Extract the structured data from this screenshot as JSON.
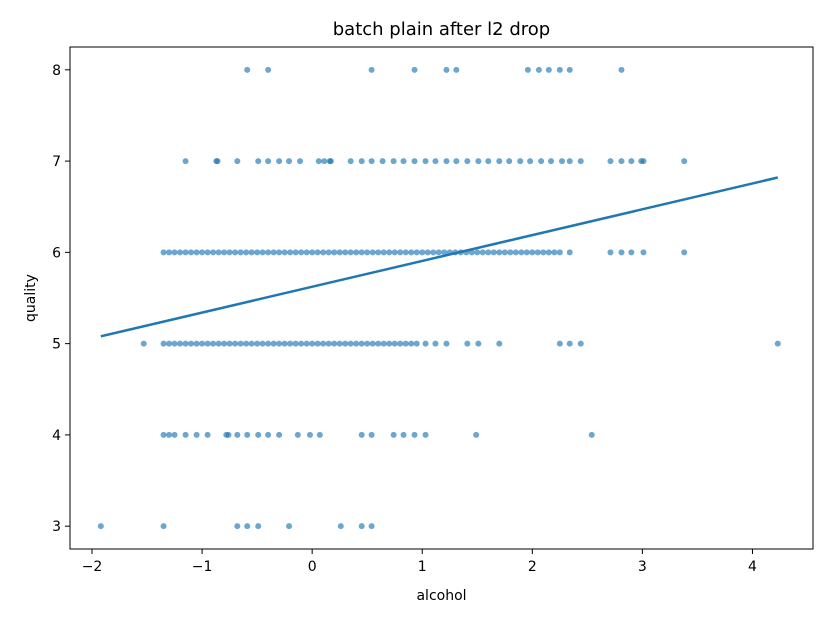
{
  "chart_data": {
    "type": "scatter",
    "title": "batch plain after l2 drop",
    "xlabel": "alcohol",
    "ylabel": "quality",
    "xlim": [
      -2.2,
      4.55
    ],
    "ylim": [
      2.75,
      8.25
    ],
    "xticks": [
      -2,
      -1,
      0,
      1,
      2,
      3,
      4
    ],
    "yticks": [
      3,
      4,
      5,
      6,
      7,
      8
    ],
    "xtick_labels": [
      "−2",
      "−1",
      "0",
      "1",
      "2",
      "3",
      "4"
    ],
    "ytick_labels": [
      "3",
      "4",
      "5",
      "6",
      "7",
      "8"
    ],
    "grid": false,
    "marker_color": "#1f77b4",
    "marker_alpha": 0.65,
    "line_color": "#1f77b4",
    "fit_line": {
      "x": [
        -1.92,
        4.23
      ],
      "y": [
        5.08,
        6.82
      ]
    },
    "points_by_quality": {
      "8": [
        -0.59,
        -0.4,
        0.54,
        0.93,
        1.22,
        1.31,
        1.96,
        2.06,
        2.15,
        2.25,
        2.34,
        2.81
      ],
      "7": [
        -1.15,
        -0.87,
        -0.86,
        -0.68,
        -0.49,
        -0.4,
        -0.3,
        -0.21,
        -0.11,
        0.06,
        0.11,
        0.16,
        0.17,
        0.35,
        0.45,
        0.54,
        0.64,
        0.74,
        0.83,
        0.93,
        1.03,
        1.12,
        1.22,
        1.31,
        1.41,
        1.51,
        1.6,
        1.7,
        1.79,
        1.89,
        1.98,
        2.08,
        2.17,
        2.27,
        2.34,
        2.44,
        2.71,
        2.81,
        2.9,
        2.99,
        3.01,
        3.38
      ],
      "6": [
        -1.35,
        -1.3,
        -1.25,
        -1.2,
        -1.15,
        -1.1,
        -1.05,
        -1.0,
        -0.95,
        -0.9,
        -0.85,
        -0.8,
        -0.75,
        -0.7,
        -0.65,
        -0.6,
        -0.55,
        -0.5,
        -0.45,
        -0.4,
        -0.35,
        -0.3,
        -0.25,
        -0.2,
        -0.15,
        -0.1,
        -0.05,
        0.0,
        0.05,
        0.1,
        0.15,
        0.2,
        0.25,
        0.3,
        0.35,
        0.4,
        0.45,
        0.5,
        0.55,
        0.6,
        0.65,
        0.7,
        0.75,
        0.8,
        0.85,
        0.9,
        0.95,
        1.0,
        1.05,
        1.1,
        1.15,
        1.2,
        1.25,
        1.3,
        1.35,
        1.4,
        1.45,
        1.5,
        1.55,
        1.6,
        1.65,
        1.7,
        1.75,
        1.8,
        1.85,
        1.9,
        1.95,
        2.0,
        2.05,
        2.1,
        2.15,
        2.2,
        2.25,
        2.34,
        2.71,
        2.81,
        2.9,
        3.01,
        3.38
      ],
      "5": [
        -1.53,
        -1.35,
        -1.3,
        -1.25,
        -1.2,
        -1.15,
        -1.1,
        -1.05,
        -1.0,
        -0.95,
        -0.9,
        -0.85,
        -0.8,
        -0.75,
        -0.7,
        -0.65,
        -0.6,
        -0.55,
        -0.5,
        -0.45,
        -0.4,
        -0.35,
        -0.3,
        -0.25,
        -0.2,
        -0.15,
        -0.1,
        -0.05,
        0.0,
        0.05,
        0.1,
        0.15,
        0.2,
        0.25,
        0.3,
        0.35,
        0.4,
        0.45,
        0.5,
        0.55,
        0.6,
        0.65,
        0.7,
        0.75,
        0.8,
        0.85,
        0.9,
        0.95,
        1.03,
        1.12,
        1.22,
        1.41,
        1.51,
        1.7,
        2.25,
        2.34,
        2.44,
        4.23
      ],
      "4": [
        -1.35,
        -1.3,
        -1.25,
        -1.15,
        -1.05,
        -0.95,
        -0.78,
        -0.76,
        -0.68,
        -0.59,
        -0.49,
        -0.4,
        -0.3,
        -0.13,
        -0.02,
        0.07,
        0.45,
        0.54,
        0.74,
        0.83,
        0.93,
        1.03,
        1.49,
        2.54
      ],
      "3": [
        -1.92,
        -1.35,
        -0.68,
        -0.59,
        -0.49,
        -0.21,
        0.26,
        0.45,
        0.54
      ]
    }
  }
}
